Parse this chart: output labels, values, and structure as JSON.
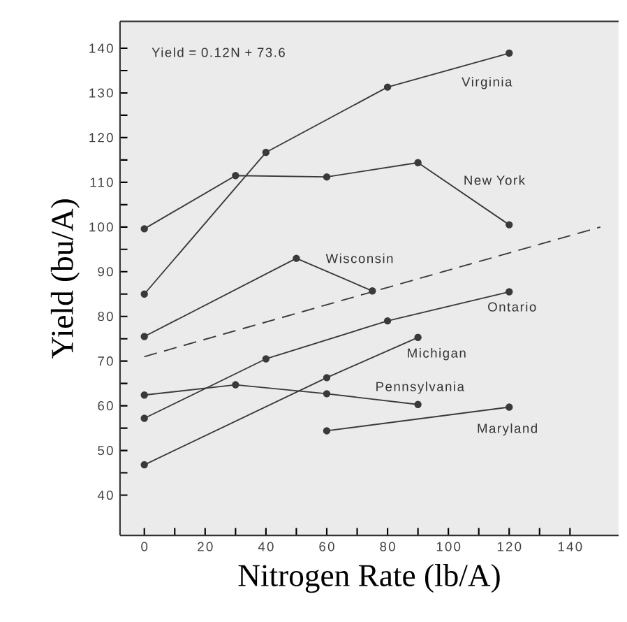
{
  "chart_data": {
    "type": "line",
    "xlabel": "Nitrogen Rate (lb/A)",
    "ylabel": "Yield (bu/A)",
    "annotations": [
      "Yield = 0.12N + 73.6"
    ],
    "xlim": [
      -8,
      156
    ],
    "ylim": [
      31,
      146
    ],
    "xticks": [
      0,
      {
        "value": 10,
        "label": null
      },
      20,
      {
        "value": 30,
        "label": null
      },
      40,
      {
        "value": 50,
        "label": null
      },
      60,
      {
        "value": 70,
        "label": null
      },
      80,
      {
        "value": 90,
        "label": null
      },
      100,
      {
        "value": 110,
        "label": null
      },
      120,
      {
        "value": 130,
        "label": null
      },
      140
    ],
    "yticks": [
      40,
      {
        "value": 45,
        "label": null
      },
      50,
      {
        "value": 55,
        "label": null
      },
      60,
      {
        "value": 65,
        "label": null
      },
      70,
      {
        "value": 75,
        "label": null
      },
      80,
      {
        "value": 85,
        "label": null
      },
      90,
      {
        "value": 95,
        "label": null
      },
      100,
      {
        "value": 105,
        "label": null
      },
      110,
      {
        "value": 115,
        "label": null
      },
      120,
      {
        "value": 125,
        "label": null
      },
      130,
      {
        "value": 135,
        "label": null
      },
      140
    ],
    "marker": "circle",
    "line_style": "solid",
    "grid": false,
    "series": [
      {
        "name": "Virginia",
        "color": "#3a3a3a",
        "x": [
          0,
          40,
          80,
          120
        ],
        "values": [
          85,
          116.7,
          131.3,
          138.9
        ]
      },
      {
        "name": "New York",
        "color": "#3a3a3a",
        "x": [
          0,
          30,
          60,
          90,
          120
        ],
        "values": [
          99.6,
          111.5,
          111.2,
          114.4,
          100.5
        ]
      },
      {
        "name": "Wisconsin",
        "color": "#3a3a3a",
        "x": [
          0,
          50,
          75
        ],
        "values": [
          75.5,
          93,
          85.7
        ]
      },
      {
        "name": "Ontario",
        "color": "#3a3a3a",
        "x": [
          0,
          40,
          80,
          120
        ],
        "values": [
          57.2,
          70.5,
          79,
          85.5
        ]
      },
      {
        "name": "Michigan",
        "color": "#3a3a3a",
        "x": [
          0,
          60,
          90
        ],
        "values": [
          46.8,
          66.3,
          75.3
        ]
      },
      {
        "name": "Pennsylvania",
        "color": "#3a3a3a",
        "x": [
          0,
          30,
          60,
          90
        ],
        "values": [
          62.4,
          64.7,
          62.7,
          60.3
        ]
      },
      {
        "name": "Maryland",
        "color": "#3a3a3a",
        "x": [
          60,
          120
        ],
        "values": [
          54.4,
          59.7
        ]
      },
      {
        "color": "#3a3a3a",
        "marker": "none",
        "line_style": "dashed",
        "x": [
          0,
          150
        ],
        "values": [
          71,
          100
        ]
      }
    ]
  }
}
